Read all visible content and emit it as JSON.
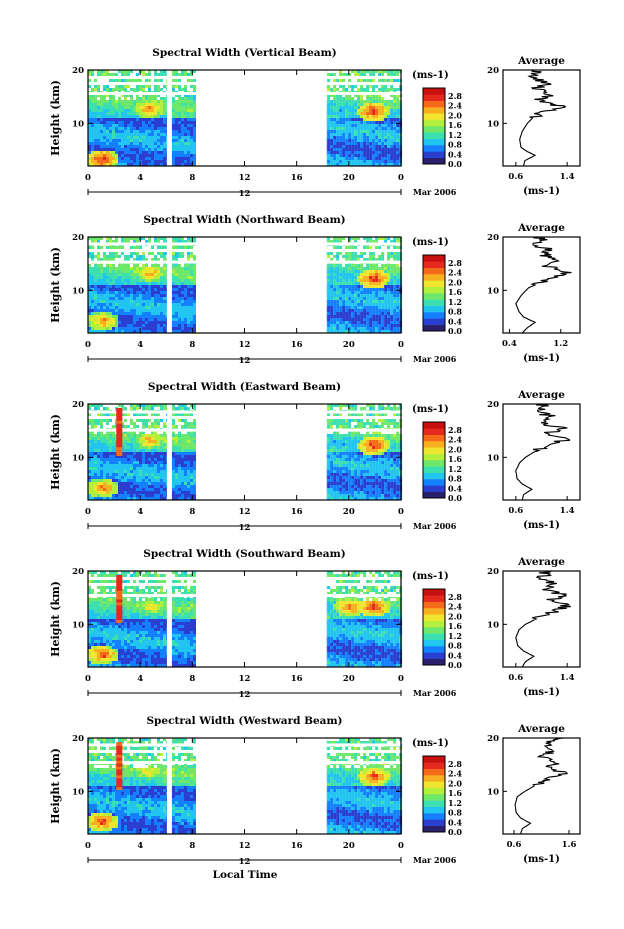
{
  "chart_data": [
    {
      "type": "heatmap",
      "title": "Spectral Width (Vertical Beam)",
      "ylabel": "Height (km)",
      "ylim": [
        2,
        20
      ],
      "y_ticks": [
        "10",
        "20"
      ],
      "xlim": [
        0,
        24
      ],
      "x_ticks": [
        "0",
        "4",
        "8",
        "12",
        "16",
        "20",
        "0"
      ],
      "date_label": "12",
      "date_right": "Mar 2006",
      "data_segments": [
        [
          0,
          8.2
        ],
        [
          18.1,
          24
        ]
      ],
      "bright_rows_km": [
        15.5,
        18.5
      ],
      "hotspots": [
        {
          "t": 1,
          "h": 3.5,
          "v": 2.6
        },
        {
          "t": 4.6,
          "h": 13,
          "v": 2.3
        },
        {
          "t": 21.8,
          "h": 12.5,
          "v": 2.6
        }
      ],
      "colorbar": {
        "unit": "(ms-1)",
        "ticks": [
          "2.8",
          "2.4",
          "2.0",
          "1.6",
          "1.2",
          "0.8",
          "0.4",
          "0.0"
        ],
        "colors": [
          "#2a1f6b",
          "#2a3fd0",
          "#1580ff",
          "#22c4f0",
          "#3ce0b0",
          "#6ee86a",
          "#b4ef3c",
          "#f0e630",
          "#f8b020",
          "#f46a18",
          "#e4291e",
          "#c71010"
        ]
      },
      "average": {
        "title": "Average",
        "xlabel": "(ms-1)",
        "xticks": [
          "0.6",
          "1.4"
        ],
        "xlim": [
          0.4,
          1.6
        ],
        "yticks": [
          "10",
          "20"
        ],
        "ylim": [
          2,
          20
        ],
        "profile": [
          [
            2,
            0.72
          ],
          [
            3,
            0.74
          ],
          [
            4,
            0.9
          ],
          [
            4.7,
            0.78
          ],
          [
            5.5,
            0.68
          ],
          [
            7,
            0.66
          ],
          [
            8.5,
            0.7
          ],
          [
            10,
            0.78
          ],
          [
            11,
            0.86
          ],
          [
            12,
            1.0
          ],
          [
            13,
            1.4
          ],
          [
            13.6,
            1.1
          ],
          [
            14.5,
            0.95
          ],
          [
            15.5,
            1.15
          ],
          [
            16.5,
            0.9
          ],
          [
            17.5,
            1.1
          ],
          [
            18.5,
            0.85
          ],
          [
            19.5,
            0.95
          ],
          [
            20,
            0.9
          ]
        ]
      }
    },
    {
      "type": "heatmap",
      "title": "Spectral Width (Northward Beam)",
      "ylabel": "Height (km)",
      "ylim": [
        2,
        20
      ],
      "y_ticks": [
        "10",
        "20"
      ],
      "xlim": [
        0,
        24
      ],
      "x_ticks": [
        "0",
        "4",
        "8",
        "12",
        "16",
        "20",
        "0"
      ],
      "date_label": "12",
      "date_right": "Mar 2006",
      "data_segments": [
        [
          0,
          8.2
        ],
        [
          18.1,
          24
        ]
      ],
      "bright_rows_km": [
        15.2,
        18.6
      ],
      "hotspots": [
        {
          "t": 1,
          "h": 4.5,
          "v": 2.3
        },
        {
          "t": 4.6,
          "h": 13.5,
          "v": 2.2
        },
        {
          "t": 21.8,
          "h": 12.5,
          "v": 2.6
        }
      ],
      "colorbar": {
        "unit": "(ms-1)",
        "ticks": [
          "2.8",
          "2.4",
          "2.0",
          "1.6",
          "1.2",
          "0.8",
          "0.4",
          "0.0"
        ],
        "colors": [
          "#2a1f6b",
          "#2a3fd0",
          "#1580ff",
          "#22c4f0",
          "#3ce0b0",
          "#6ee86a",
          "#b4ef3c",
          "#f0e630",
          "#f8b020",
          "#f46a18",
          "#e4291e",
          "#c71010"
        ]
      },
      "average": {
        "title": "Average",
        "xlabel": "(ms-1)",
        "xticks": [
          "0.4",
          "1.2"
        ],
        "xlim": [
          0.3,
          1.5
        ],
        "yticks": [
          "10",
          "20"
        ],
        "ylim": [
          2,
          20
        ],
        "profile": [
          [
            2,
            0.6
          ],
          [
            3,
            0.68
          ],
          [
            4,
            0.8
          ],
          [
            5,
            0.62
          ],
          [
            6,
            0.55
          ],
          [
            7.5,
            0.5
          ],
          [
            9,
            0.58
          ],
          [
            10.5,
            0.7
          ],
          [
            11.5,
            0.9
          ],
          [
            12.5,
            1.1
          ],
          [
            13.5,
            1.3
          ],
          [
            14.5,
            1.0
          ],
          [
            15.5,
            1.2
          ],
          [
            16.5,
            0.95
          ],
          [
            17.5,
            1.05
          ],
          [
            18.5,
            0.8
          ],
          [
            19.5,
            0.9
          ],
          [
            20,
            0.85
          ]
        ]
      }
    },
    {
      "type": "heatmap",
      "title": "Spectral Width (Eastward Beam)",
      "ylabel": "Height (km)",
      "ylim": [
        2,
        20
      ],
      "y_ticks": [
        "10",
        "20"
      ],
      "xlim": [
        0,
        24
      ],
      "x_ticks": [
        "0",
        "4",
        "8",
        "12",
        "16",
        "20",
        "0"
      ],
      "date_label": "12",
      "date_right": "Mar 2006",
      "data_segments": [
        [
          0,
          8.2
        ],
        [
          18.1,
          24
        ]
      ],
      "bright_rows_km": [
        15.0,
        18.4
      ],
      "red_column_t": 2.4,
      "hotspots": [
        {
          "t": 1,
          "h": 4.5,
          "v": 2.4
        },
        {
          "t": 4.6,
          "h": 13.5,
          "v": 2.2
        },
        {
          "t": 21.8,
          "h": 12.5,
          "v": 2.6
        }
      ],
      "colorbar": {
        "unit": "(ms-1)",
        "ticks": [
          "2.8",
          "2.4",
          "2.0",
          "1.6",
          "1.2",
          "0.8",
          "0.4",
          "0.0"
        ],
        "colors": [
          "#2a1f6b",
          "#2a3fd0",
          "#1580ff",
          "#22c4f0",
          "#3ce0b0",
          "#6ee86a",
          "#b4ef3c",
          "#f0e630",
          "#f8b020",
          "#f46a18",
          "#e4291e",
          "#c71010"
        ]
      },
      "average": {
        "title": "Average",
        "xlabel": "(ms-1)",
        "xticks": [
          "0.6",
          "1.4"
        ],
        "xlim": [
          0.4,
          1.6
        ],
        "yticks": [
          "10",
          "20"
        ],
        "ylim": [
          2,
          20
        ],
        "profile": [
          [
            2,
            0.7
          ],
          [
            3,
            0.72
          ],
          [
            4,
            0.85
          ],
          [
            5,
            0.7
          ],
          [
            6,
            0.62
          ],
          [
            7.5,
            0.6
          ],
          [
            9,
            0.66
          ],
          [
            10,
            0.75
          ],
          [
            11.5,
            0.95
          ],
          [
            12.5,
            1.15
          ],
          [
            13.5,
            1.45
          ],
          [
            14.5,
            1.1
          ],
          [
            15.5,
            1.3
          ],
          [
            16.5,
            1.0
          ],
          [
            17.5,
            1.2
          ],
          [
            18.5,
            0.95
          ],
          [
            19.5,
            1.05
          ],
          [
            20,
            1.0
          ]
        ]
      }
    },
    {
      "type": "heatmap",
      "title": "Spectral Width (Southward Beam)",
      "ylabel": "Height (km)",
      "ylim": [
        2,
        20
      ],
      "y_ticks": [
        "10",
        "20"
      ],
      "xlim": [
        0,
        24
      ],
      "x_ticks": [
        "0",
        "4",
        "8",
        "12",
        "16",
        "20",
        "0"
      ],
      "date_label": "12",
      "date_right": "Mar 2006",
      "data_segments": [
        [
          0,
          8.2
        ],
        [
          18.1,
          24
        ]
      ],
      "bright_rows_km": [
        15.3,
        18.5
      ],
      "red_column_t": 2.4,
      "hotspots": [
        {
          "t": 1,
          "h": 4.5,
          "v": 2.5
        },
        {
          "t": 4.8,
          "h": 13.5,
          "v": 2.0
        },
        {
          "t": 20,
          "h": 13.5,
          "v": 2.4
        },
        {
          "t": 21.8,
          "h": 13.5,
          "v": 2.6
        }
      ],
      "colorbar": {
        "unit": "(ms-1)",
        "ticks": [
          "2.8",
          "2.4",
          "2.0",
          "1.6",
          "1.2",
          "0.8",
          "0.4",
          "0.0"
        ],
        "colors": [
          "#2a1f6b",
          "#2a3fd0",
          "#1580ff",
          "#22c4f0",
          "#3ce0b0",
          "#6ee86a",
          "#b4ef3c",
          "#f0e630",
          "#f8b020",
          "#f46a18",
          "#e4291e",
          "#c71010"
        ]
      },
      "average": {
        "title": "Average",
        "xlabel": "(ms-1)",
        "xticks": [
          "0.6",
          "1.4"
        ],
        "xlim": [
          0.4,
          1.6
        ],
        "yticks": [
          "10",
          "20"
        ],
        "ylim": [
          2,
          20
        ],
        "profile": [
          [
            2,
            0.7
          ],
          [
            3,
            0.75
          ],
          [
            4,
            0.88
          ],
          [
            5,
            0.72
          ],
          [
            6,
            0.63
          ],
          [
            7.5,
            0.6
          ],
          [
            9,
            0.65
          ],
          [
            10,
            0.75
          ],
          [
            11.5,
            1.0
          ],
          [
            12.5,
            1.2
          ],
          [
            13.5,
            1.4
          ],
          [
            14.5,
            1.15
          ],
          [
            15.5,
            1.35
          ],
          [
            16.5,
            1.05
          ],
          [
            17.5,
            1.25
          ],
          [
            18.5,
            1.0
          ],
          [
            19.5,
            1.1
          ],
          [
            20,
            1.0
          ]
        ]
      }
    },
    {
      "type": "heatmap",
      "title": "Spectral Width (Westward Beam)",
      "ylabel": "Height (km)",
      "ylim": [
        2,
        20
      ],
      "y_ticks": [
        "10",
        "20"
      ],
      "xlim": [
        0,
        24
      ],
      "x_ticks": [
        "0",
        "4",
        "8",
        "12",
        "16",
        "20",
        "0"
      ],
      "date_label": "12",
      "date_right": "Mar 2006",
      "data_segments": [
        [
          0,
          8.2
        ],
        [
          18.1,
          24
        ]
      ],
      "bright_rows_km": [
        15.3,
        18.6
      ],
      "red_column_t": 2.4,
      "hotspots": [
        {
          "t": 1,
          "h": 4.5,
          "v": 2.5
        },
        {
          "t": 4.6,
          "h": 14,
          "v": 2.0
        },
        {
          "t": 21.8,
          "h": 13,
          "v": 2.5
        }
      ],
      "colorbar": {
        "unit": "(ms-1)",
        "ticks": [
          "2.8",
          "2.4",
          "2.0",
          "1.6",
          "1.2",
          "0.8",
          "0.4",
          "0.0"
        ],
        "colors": [
          "#2a1f6b",
          "#2a3fd0",
          "#1580ff",
          "#22c4f0",
          "#3ce0b0",
          "#6ee86a",
          "#b4ef3c",
          "#f0e630",
          "#f8b020",
          "#f46a18",
          "#e4291e",
          "#c71010"
        ]
      },
      "average": {
        "title": "Average",
        "xlabel": "(ms-1)",
        "xticks": [
          "0.6",
          "1.6"
        ],
        "xlim": [
          0.4,
          1.8
        ],
        "yticks": [
          "10",
          "20"
        ],
        "ylim": [
          2,
          20
        ],
        "profile": [
          [
            2,
            0.72
          ],
          [
            3,
            0.75
          ],
          [
            4,
            0.9
          ],
          [
            5,
            0.72
          ],
          [
            6,
            0.64
          ],
          [
            7.5,
            0.62
          ],
          [
            9,
            0.66
          ],
          [
            10,
            0.8
          ],
          [
            11.5,
            1.05
          ],
          [
            12.5,
            1.3
          ],
          [
            13.5,
            1.5
          ],
          [
            14.5,
            1.2
          ],
          [
            15.5,
            1.4
          ],
          [
            16.5,
            1.1
          ],
          [
            17.5,
            1.3
          ],
          [
            18.5,
            1.15
          ],
          [
            19.5,
            1.3
          ],
          [
            20,
            1.5
          ]
        ]
      }
    }
  ],
  "xlabel": "Local Time"
}
